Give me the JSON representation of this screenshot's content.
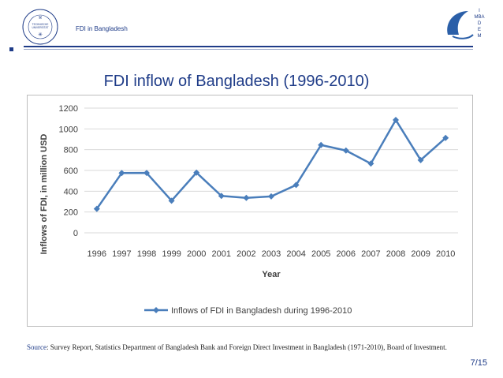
{
  "header": {
    "deck_title": "FDI in Bangladesh",
    "logo_left_text": "TECHNISCHE UNIVERSITÄT",
    "logo_right_letters": [
      "I",
      "MBA",
      "D",
      "E",
      "M"
    ]
  },
  "slide": {
    "title": "FDI inflow of Bangladesh (1996-2010)",
    "source_key": "Source",
    "source_text": ": Survey Report, Statistics Department of Bangladesh Bank and Foreign Direct Investment in Bangladesh (1971-2010), Board of Investment.",
    "page_number": "7/15"
  },
  "colors": {
    "accent": "#1f3c88",
    "series": "#4a7ebb"
  },
  "chart_data": {
    "type": "line",
    "title": "",
    "xlabel": "Year",
    "ylabel": "Inflows of FDI, in million USD",
    "x": [
      "1996",
      "1997",
      "1998",
      "1999",
      "2000",
      "2001",
      "2002",
      "2003",
      "2004",
      "2005",
      "2006",
      "2007",
      "2008",
      "2009",
      "2010"
    ],
    "series": [
      {
        "name": "Inflows of FDI in Bangladesh during 1996-2010",
        "values": [
          231,
          575,
          576,
          309,
          579,
          355,
          336,
          350,
          460,
          845,
          792,
          666,
          1086,
          700,
          913
        ]
      }
    ],
    "ylim": [
      0,
      1200
    ],
    "yticks": [
      0,
      200,
      400,
      600,
      800,
      1000,
      1200
    ],
    "grid": "horizontal",
    "legend": "bottom"
  }
}
